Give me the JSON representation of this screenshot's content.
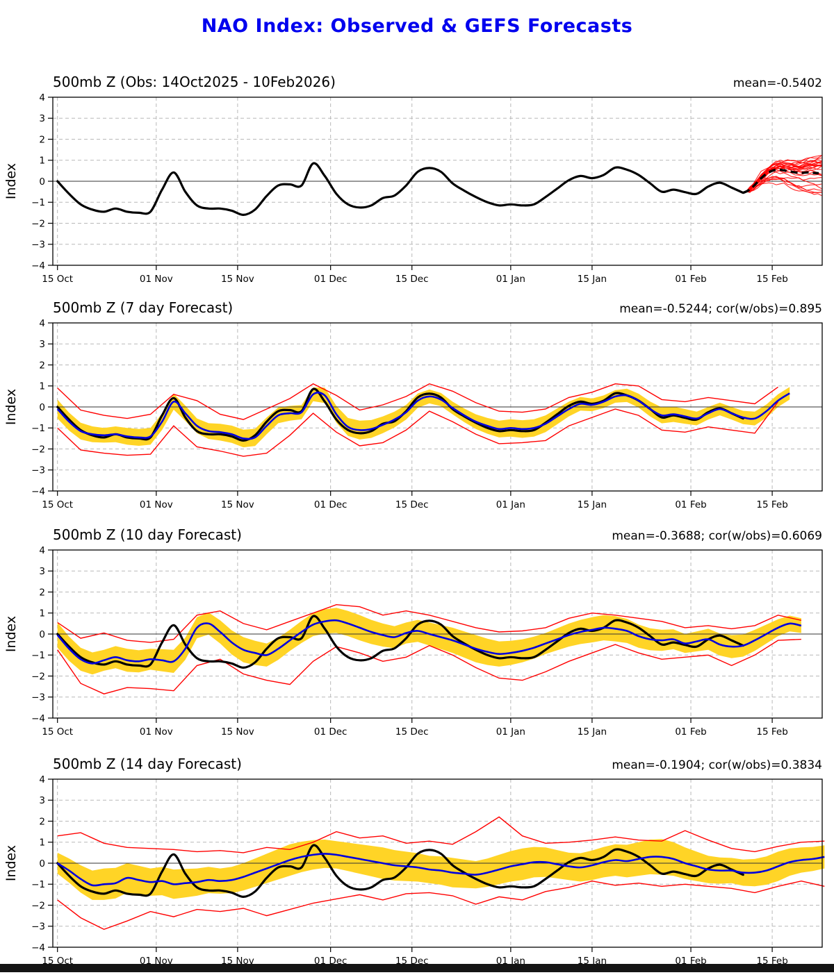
{
  "title": "NAO Index: Observed & GEFS Forecasts",
  "chart_data": {
    "type": "line",
    "ylabel": "Index",
    "ylim": [
      -4,
      4
    ],
    "yticks": [
      -4,
      -3,
      -2,
      -1,
      0,
      1,
      2,
      3,
      4
    ],
    "x_domain": [
      -0.8,
      131.6
    ],
    "xticks": [
      {
        "day": 0,
        "label": "15 Oct"
      },
      {
        "day": 17,
        "label": "01 Nov"
      },
      {
        "day": 31,
        "label": "15 Nov"
      },
      {
        "day": 47,
        "label": "01 Dec"
      },
      {
        "day": 61,
        "label": "15 Dec"
      },
      {
        "day": 78,
        "label": "01 Jan"
      },
      {
        "day": 92,
        "label": "15 Jan"
      },
      {
        "day": 109,
        "label": "01 Feb"
      },
      {
        "day": 123,
        "label": "15 Feb"
      }
    ],
    "colors": {
      "obs": "#000000",
      "forecast_mean": "#0000DD",
      "ensemble": "#FF0000",
      "band": "#FFD426",
      "grid": "#b8b8b8",
      "zero_line": "#333333"
    },
    "obs": {
      "start": 0,
      "step": 2,
      "values": [
        0.0,
        -0.6,
        -1.1,
        -1.35,
        -1.45,
        -1.3,
        -1.45,
        -1.5,
        -1.45,
        -0.4,
        0.42,
        -0.5,
        -1.15,
        -1.3,
        -1.3,
        -1.4,
        -1.6,
        -1.35,
        -0.7,
        -0.2,
        -0.15,
        -0.2,
        0.85,
        0.25,
        -0.6,
        -1.1,
        -1.25,
        -1.15,
        -0.8,
        -0.68,
        -0.2,
        0.45,
        0.63,
        0.45,
        -0.1,
        -0.45,
        -0.75,
        -1.0,
        -1.15,
        -1.1,
        -1.15,
        -1.1,
        -0.75,
        -0.35,
        0.05,
        0.25,
        0.15,
        0.3,
        0.65,
        0.55,
        0.3,
        -0.1,
        -0.5,
        -0.4,
        -0.52,
        -0.6,
        -0.25,
        -0.07,
        -0.3,
        -0.55
      ]
    },
    "panels": [
      {
        "id": "observed",
        "title": "500mb Z (Obs: 14Oct2025 - 10Feb2026)",
        "stats": "mean=-0.5402",
        "obs_dashed": {
          "start": 118,
          "step": 1,
          "values": [
            -0.55,
            -0.42,
            -0.18,
            0.12,
            0.35,
            0.5,
            0.55,
            0.52,
            0.47,
            0.42,
            0.4,
            0.42,
            0.4,
            0.38
          ]
        },
        "ensemble": {
          "count": 26,
          "start_day": 118.5,
          "end_day": 131.5,
          "spread_end": 0.95,
          "noise": 0.18,
          "seed": 7
        }
      },
      {
        "id": "forecast-7day",
        "title": "500mb Z (7 day Forecast)",
        "stats": "mean=-0.5244; cor(w/obs)=0.895",
        "mean": {
          "start": 0,
          "step": 2,
          "values": [
            -0.1,
            -0.7,
            -1.15,
            -1.3,
            -1.35,
            -1.3,
            -1.4,
            -1.45,
            -1.4,
            -0.7,
            0.25,
            -0.3,
            -0.9,
            -1.15,
            -1.2,
            -1.3,
            -1.5,
            -1.45,
            -0.9,
            -0.4,
            -0.3,
            -0.25,
            0.6,
            0.55,
            -0.35,
            -0.95,
            -1.1,
            -1.05,
            -0.85,
            -0.6,
            -0.25,
            0.3,
            0.5,
            0.35,
            -0.05,
            -0.4,
            -0.7,
            -0.9,
            -1.05,
            -1.0,
            -1.05,
            -1.0,
            -0.8,
            -0.45,
            -0.1,
            0.15,
            0.1,
            0.25,
            0.5,
            0.55,
            0.3,
            -0.1,
            -0.4,
            -0.35,
            -0.45,
            -0.55,
            -0.3,
            -0.1,
            -0.3,
            -0.5,
            -0.55,
            -0.2,
            0.3,
            0.65
          ]
        },
        "band_half": {
          "start": 0,
          "step": 4,
          "values": [
            0.45,
            0.4,
            0.35,
            0.4,
            0.4,
            0.38,
            0.35,
            0.4,
            0.42,
            0.4,
            0.35,
            0.33,
            0.4,
            0.45,
            0.4,
            0.35,
            0.33,
            0.3,
            0.35,
            0.4,
            0.42,
            0.4,
            0.35,
            0.3,
            0.3,
            0.33,
            0.38,
            0.35,
            0.3,
            0.3,
            0.33,
            0.3
          ]
        },
        "env_top": {
          "start": 0,
          "step": 4,
          "values": [
            0.9,
            -0.15,
            -0.4,
            -0.55,
            -0.35,
            0.6,
            0.3,
            -0.35,
            -0.6,
            -0.1,
            0.4,
            1.1,
            0.55,
            -0.15,
            0.1,
            0.5,
            1.1,
            0.75,
            0.2,
            -0.2,
            -0.25,
            -0.1,
            0.45,
            0.7,
            1.1,
            1.0,
            0.35,
            0.25,
            0.45,
            0.3,
            0.15,
            0.95
          ]
        },
        "env_bot": {
          "start": 0,
          "step": 4,
          "values": [
            -1.0,
            -2.05,
            -2.2,
            -2.3,
            -2.25,
            -0.9,
            -1.9,
            -2.1,
            -2.35,
            -2.2,
            -1.35,
            -0.3,
            -1.2,
            -1.85,
            -1.7,
            -1.1,
            -0.2,
            -0.7,
            -1.3,
            -1.75,
            -1.7,
            -1.6,
            -0.9,
            -0.5,
            -0.1,
            -0.4,
            -1.1,
            -1.2,
            -0.95,
            -1.1,
            -1.25,
            0.25
          ]
        }
      },
      {
        "id": "forecast-10day",
        "title": "500mb Z (10 day Forecast)",
        "stats": "mean=-0.3688; cor(w/obs)=0.6069",
        "mean": {
          "start": 0,
          "step": 2,
          "values": [
            -0.05,
            -0.7,
            -1.2,
            -1.4,
            -1.25,
            -1.1,
            -1.25,
            -1.3,
            -1.2,
            -1.25,
            -1.3,
            -0.7,
            0.3,
            0.5,
            0.1,
            -0.4,
            -0.75,
            -0.9,
            -1.0,
            -0.7,
            -0.3,
            0.1,
            0.45,
            0.6,
            0.65,
            0.5,
            0.3,
            0.1,
            -0.05,
            -0.15,
            0.05,
            0.15,
            0.0,
            -0.15,
            -0.3,
            -0.5,
            -0.7,
            -0.85,
            -0.95,
            -0.9,
            -0.8,
            -0.65,
            -0.45,
            -0.25,
            -0.05,
            0.1,
            0.2,
            0.3,
            0.25,
            0.15,
            -0.1,
            -0.25,
            -0.3,
            -0.25,
            -0.45,
            -0.35,
            -0.25,
            -0.5,
            -0.6,
            -0.55,
            -0.3,
            0.0,
            0.3,
            0.5,
            0.4
          ]
        },
        "band_half": {
          "start": 0,
          "step": 4,
          "values": [
            0.6,
            0.55,
            0.5,
            0.55,
            0.5,
            0.55,
            0.5,
            0.55,
            0.6,
            0.55,
            0.5,
            0.55,
            0.6,
            0.6,
            0.55,
            0.5,
            0.55,
            0.6,
            0.65,
            0.6,
            0.55,
            0.5,
            0.55,
            0.6,
            0.6,
            0.55,
            0.5,
            0.45,
            0.5,
            0.55,
            0.5,
            0.4,
            0.35
          ]
        },
        "env_top": {
          "start": 0,
          "step": 4,
          "values": [
            0.55,
            -0.2,
            0.05,
            -0.3,
            -0.4,
            -0.25,
            0.9,
            1.1,
            0.5,
            0.2,
            0.6,
            1.0,
            1.4,
            1.3,
            0.9,
            1.1,
            0.9,
            0.6,
            0.3,
            0.1,
            0.15,
            0.3,
            0.75,
            1.0,
            0.9,
            0.75,
            0.6,
            0.3,
            0.4,
            0.25,
            0.4,
            0.9,
            0.65
          ]
        },
        "env_bot": {
          "start": 0,
          "step": 4,
          "values": [
            -0.75,
            -2.35,
            -2.85,
            -2.55,
            -2.6,
            -2.7,
            -1.5,
            -1.2,
            -1.9,
            -2.2,
            -2.4,
            -1.3,
            -0.6,
            -0.9,
            -1.3,
            -1.1,
            -0.55,
            -1.0,
            -1.6,
            -2.1,
            -2.2,
            -1.8,
            -1.3,
            -0.9,
            -0.5,
            -0.9,
            -1.2,
            -1.1,
            -1.0,
            -1.5,
            -1.0,
            -0.3,
            -0.25
          ]
        }
      },
      {
        "id": "forecast-14day",
        "title": "500mb Z (14 day Forecast)",
        "stats": "mean=-0.1904; cor(w/obs)=0.3834",
        "mean": {
          "start": 0,
          "step": 2,
          "values": [
            0.0,
            -0.35,
            -0.75,
            -1.05,
            -1.0,
            -0.95,
            -0.7,
            -0.8,
            -0.9,
            -0.85,
            -1.0,
            -0.95,
            -0.9,
            -0.8,
            -0.85,
            -0.8,
            -0.65,
            -0.45,
            -0.25,
            -0.05,
            0.15,
            0.3,
            0.4,
            0.45,
            0.4,
            0.3,
            0.2,
            0.1,
            0.0,
            -0.1,
            -0.15,
            -0.2,
            -0.3,
            -0.35,
            -0.45,
            -0.5,
            -0.55,
            -0.45,
            -0.3,
            -0.15,
            -0.05,
            0.05,
            0.05,
            -0.05,
            -0.15,
            -0.2,
            -0.1,
            0.05,
            0.15,
            0.1,
            0.2,
            0.3,
            0.3,
            0.2,
            0.0,
            -0.15,
            -0.3,
            -0.35,
            -0.35,
            -0.45,
            -0.45,
            -0.35,
            -0.15,
            0.05,
            0.15,
            0.2,
            0.3
          ]
        },
        "band_half": {
          "start": 0,
          "step": 4,
          "values": [
            0.5,
            0.65,
            0.75,
            0.7,
            0.65,
            0.7,
            0.65,
            0.6,
            0.65,
            0.7,
            0.75,
            0.7,
            0.65,
            0.7,
            0.75,
            0.7,
            0.65,
            0.7,
            0.65,
            0.7,
            0.75,
            0.7,
            0.65,
            0.7,
            0.75,
            0.8,
            0.85,
            0.75,
            0.65,
            0.6,
            0.65,
            0.7,
            0.6,
            0.55
          ]
        },
        "env_top": {
          "start": 0,
          "step": 4,
          "values": [
            1.3,
            1.45,
            0.95,
            0.75,
            0.7,
            0.65,
            0.55,
            0.6,
            0.5,
            0.75,
            0.65,
            1.0,
            1.5,
            1.2,
            1.3,
            0.95,
            1.05,
            0.9,
            1.5,
            2.2,
            1.3,
            0.95,
            1.0,
            1.1,
            1.25,
            1.1,
            1.05,
            1.55,
            1.1,
            0.7,
            0.55,
            0.8,
            1.0,
            1.05
          ]
        },
        "env_bot": {
          "start": 0,
          "step": 4,
          "values": [
            -1.75,
            -2.6,
            -3.15,
            -2.75,
            -2.3,
            -2.55,
            -2.2,
            -2.3,
            -2.15,
            -2.5,
            -2.2,
            -1.9,
            -1.7,
            -1.5,
            -1.75,
            -1.45,
            -1.4,
            -1.55,
            -1.95,
            -1.6,
            -1.75,
            -1.35,
            -1.15,
            -0.85,
            -1.05,
            -0.95,
            -1.1,
            -1.0,
            -1.1,
            -1.2,
            -1.4,
            -1.1,
            -0.85,
            -1.1
          ]
        }
      }
    ]
  }
}
